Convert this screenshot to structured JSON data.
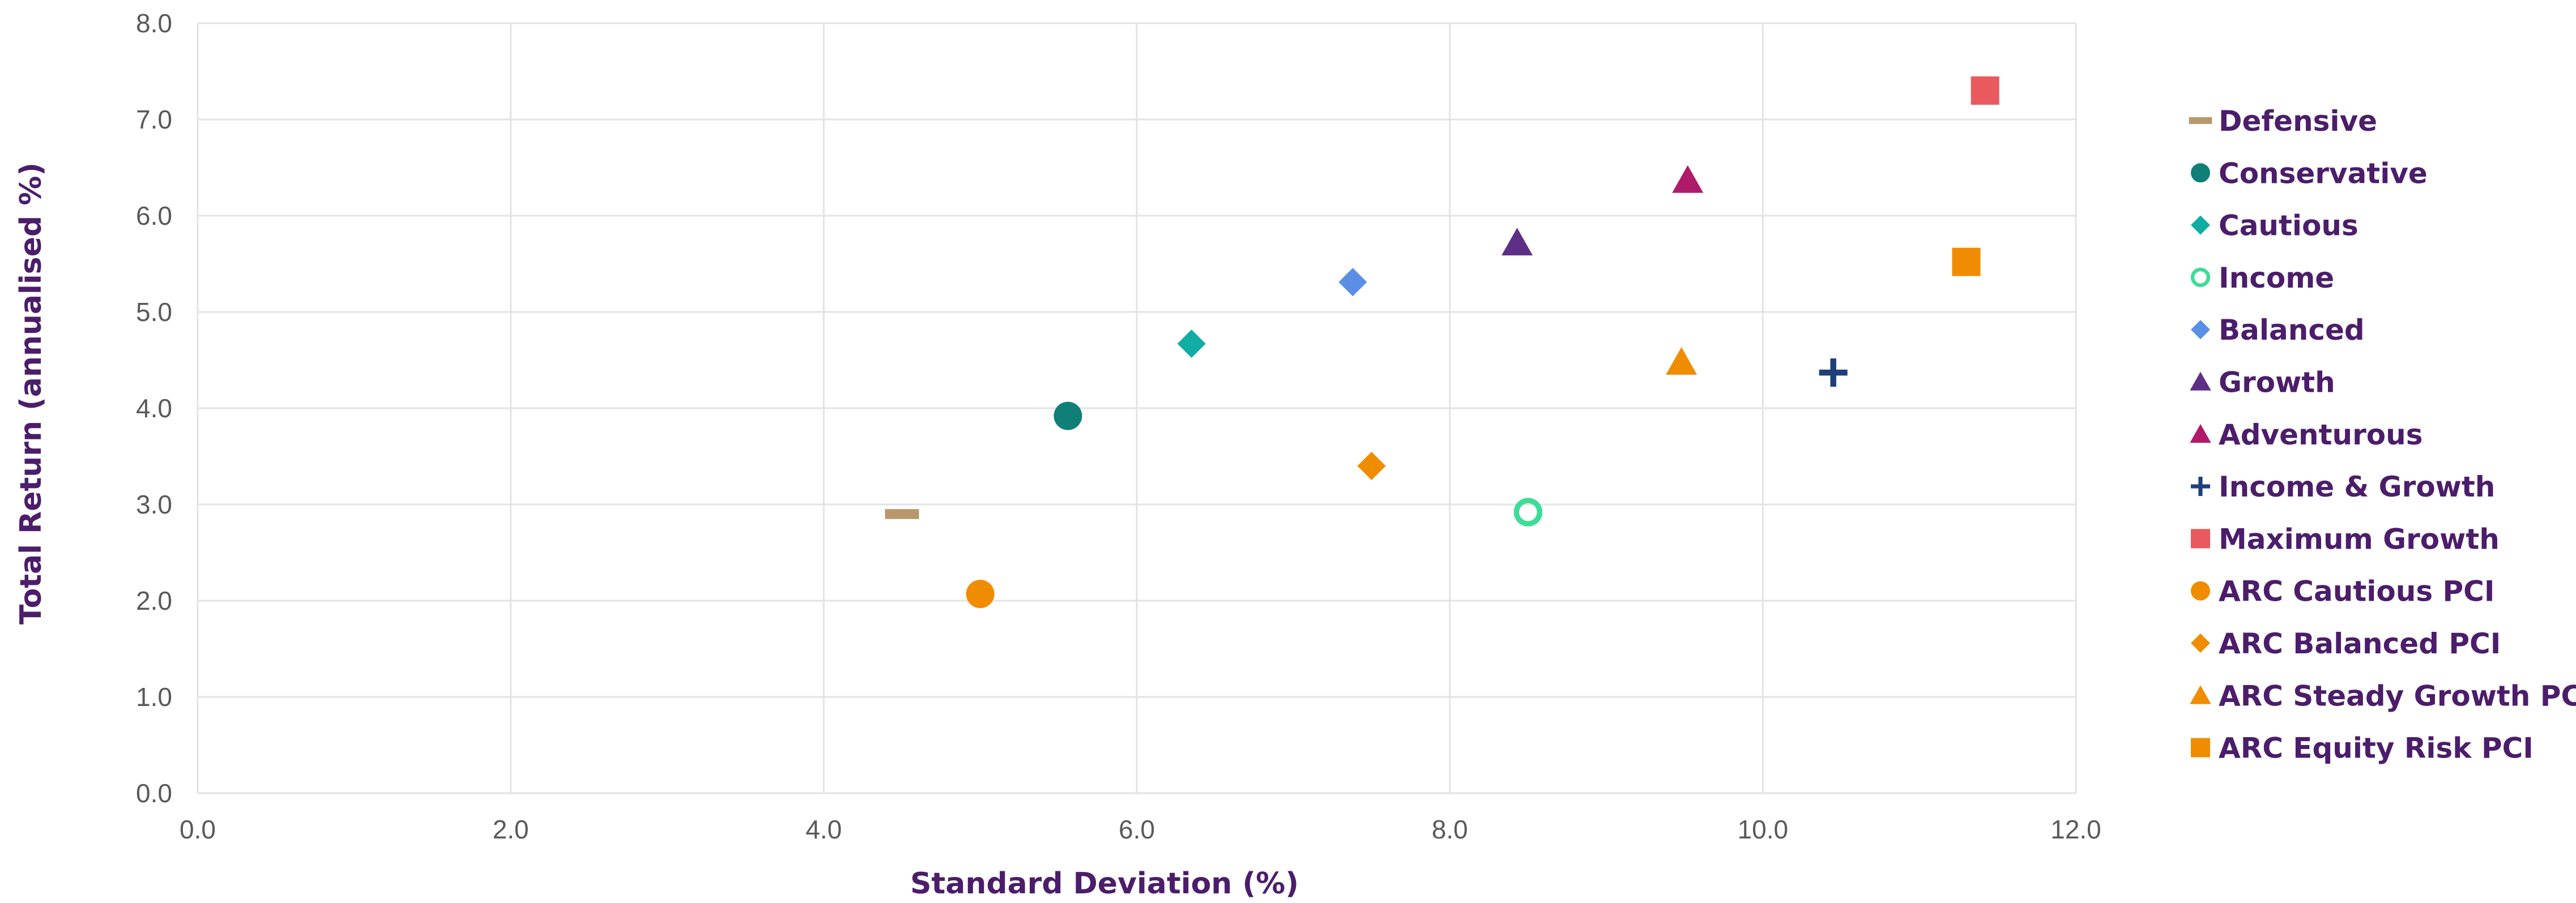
{
  "chart_data": {
    "type": "scatter",
    "title": "",
    "xlabel": "Standard Deviation (%)",
    "ylabel": "Total Return (annualised %)",
    "xlim": [
      0,
      12
    ],
    "ylim": [
      0,
      8
    ],
    "x_ticks": [
      "0.0",
      "2.0",
      "4.0",
      "6.0",
      "8.0",
      "10.0",
      "12.0"
    ],
    "y_ticks": [
      "0.0",
      "1.0",
      "2.0",
      "3.0",
      "4.0",
      "5.0",
      "6.0",
      "7.0",
      "8.0"
    ],
    "grid": true,
    "legend_position": "right",
    "series": [
      {
        "name": "Defensive",
        "marker": "dash",
        "color": "#b8976a",
        "x": 4.5,
        "y": 2.9
      },
      {
        "name": "Conservative",
        "marker": "circle",
        "color": "#0f7f78",
        "x": 5.56,
        "y": 3.92
      },
      {
        "name": "Cautious",
        "marker": "diamond",
        "color": "#11ada5",
        "x": 6.35,
        "y": 4.67
      },
      {
        "name": "Income",
        "marker": "ring",
        "color": "#3ddc97",
        "x": 8.5,
        "y": 2.92
      },
      {
        "name": "Balanced",
        "marker": "diamond",
        "color": "#5b8fe6",
        "x": 7.38,
        "y": 5.31
      },
      {
        "name": "Growth",
        "marker": "triangle",
        "color": "#5e2f87",
        "x": 8.43,
        "y": 5.72
      },
      {
        "name": "Adventurous",
        "marker": "triangle",
        "color": "#b01a6b",
        "x": 9.52,
        "y": 6.37
      },
      {
        "name": "Income & Growth",
        "marker": "plus",
        "color": "#1e3f7a",
        "x": 10.45,
        "y": 4.37
      },
      {
        "name": "Maximum Growth",
        "marker": "square",
        "color": "#e85a5e",
        "x": 11.42,
        "y": 7.3
      },
      {
        "name": "ARC Cautious PCI",
        "marker": "circle",
        "color": "#f08c00",
        "x": 5.0,
        "y": 2.07
      },
      {
        "name": "ARC Balanced PCI",
        "marker": "diamond",
        "color": "#f08c00",
        "x": 7.5,
        "y": 3.4
      },
      {
        "name": "ARC Steady Growth PCI",
        "marker": "triangle",
        "color": "#f08c00",
        "x": 9.48,
        "y": 4.48
      },
      {
        "name": "ARC Equity Risk PCI",
        "marker": "square",
        "color": "#f08c00",
        "x": 11.3,
        "y": 5.52
      }
    ]
  }
}
